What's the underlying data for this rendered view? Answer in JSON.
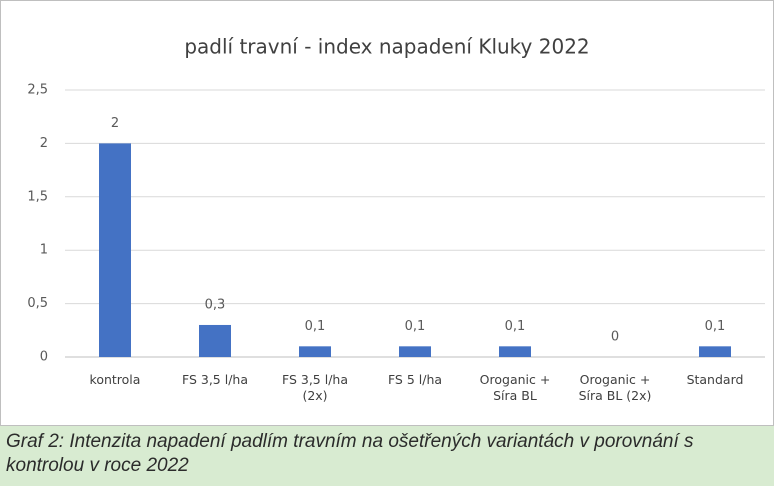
{
  "chart_data": {
    "type": "bar",
    "title": "padlí travní - index napadení Kluky 2022",
    "categories": [
      "kontrola",
      "FS 3,5 l/ha",
      "FS 3,5 l/ha (2x)",
      "FS 5 l/ha",
      "Oroganic + Síra BL",
      "Oroganic + Síra BL (2x)",
      "Standard"
    ],
    "values": [
      2,
      0.3,
      0.1,
      0.1,
      0.1,
      0,
      0.1
    ],
    "value_labels": [
      "2",
      "0,3",
      "0,1",
      "0,1",
      "0,1",
      "0",
      "0,1"
    ],
    "color": "#4472c4",
    "ylim": [
      0,
      2.5
    ],
    "yticks": [
      0,
      {
        "value": 0.5,
        "label": "0,5"
      },
      1,
      {
        "value": 1.5,
        "label": "1,5"
      },
      2,
      {
        "value": 2.5,
        "label": "2,5"
      }
    ],
    "grid": true
  },
  "caption": "Graf 2: Intenzita napadení padlím travním na ošetřených variantách v porovnání s kontrolou v roce 2022"
}
